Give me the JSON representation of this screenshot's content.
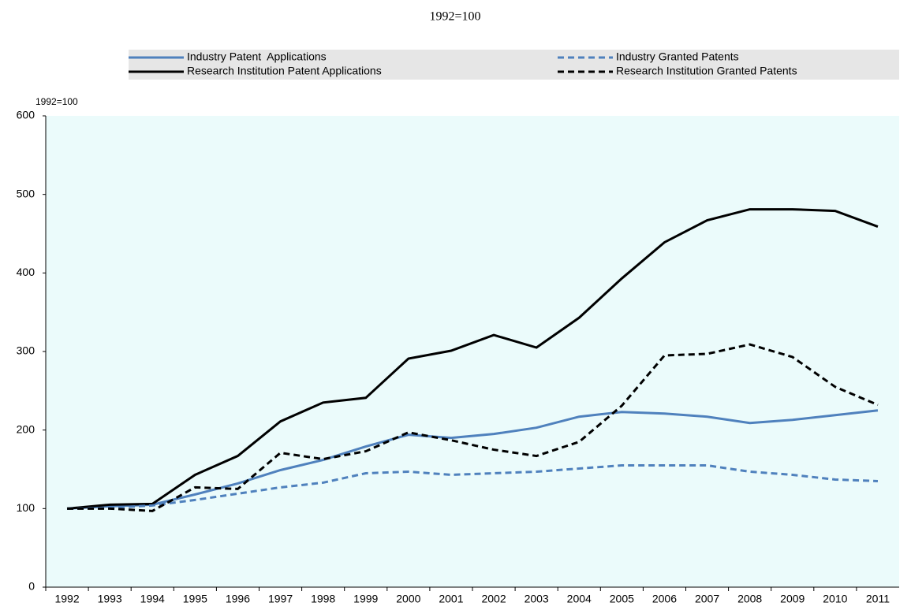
{
  "chart_data": {
    "type": "line",
    "title": "1992=100",
    "y_label": "1992=100",
    "categories": [
      "1992",
      "1993",
      "1994",
      "1995",
      "1996",
      "1997",
      "1998",
      "1999",
      "2000",
      "2001",
      "2002",
      "2003",
      "2004",
      "2005",
      "2006",
      "2007",
      "2008",
      "2009",
      "2010",
      "2011"
    ],
    "series": [
      {
        "name": "Industry Patent  Applications",
        "color": "#4f81bd",
        "dashed": false,
        "values": [
          100,
          103,
          105,
          118,
          132,
          149,
          162,
          179,
          194,
          190,
          195,
          203,
          217,
          223,
          221,
          217,
          209,
          213,
          219,
          225
        ]
      },
      {
        "name": "Research Institution Patent Applications",
        "color": "#000000",
        "dashed": false,
        "values": [
          100,
          105,
          106,
          143,
          167,
          211,
          235,
          241,
          291,
          301,
          321,
          305,
          343,
          393,
          439,
          467,
          481,
          481,
          479,
          459
        ]
      },
      {
        "name": "Industry Granted Patents",
        "color": "#4f81bd",
        "dashed": true,
        "values": [
          100,
          101,
          104,
          111,
          119,
          127,
          133,
          145,
          147,
          143,
          145,
          147,
          151,
          155,
          155,
          155,
          147,
          143,
          137,
          135
        ]
      },
      {
        "name": "Research Institution Granted Patents",
        "color": "#000000",
        "dashed": true,
        "values": [
          100,
          100,
          97,
          127,
          125,
          171,
          163,
          173,
          197,
          187,
          175,
          167,
          185,
          231,
          295,
          297,
          309,
          293,
          255,
          232
        ]
      }
    ],
    "ylim": [
      0,
      600
    ],
    "yticks": [
      0,
      100,
      200,
      300,
      400,
      500,
      600
    ],
    "grid": false,
    "legend": "top"
  }
}
